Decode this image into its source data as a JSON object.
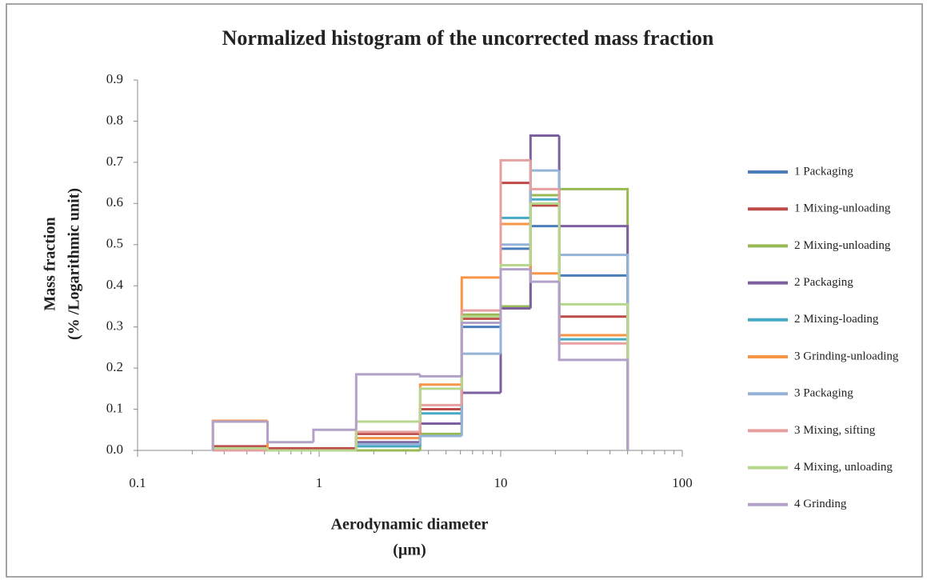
{
  "chart_data": {
    "type": "histogram",
    "title": "Normalized histogram of the uncorrected mass fraction",
    "xlabel": [
      "Aerodynamic diameter",
      "(µm)"
    ],
    "ylabel": [
      "Mass fraction",
      "(% /Logarithmic unit)"
    ],
    "xscale": "log",
    "xlim": [
      0.1,
      100
    ],
    "xticks": [
      0.1,
      1,
      10,
      100
    ],
    "ylim": [
      0,
      0.9
    ],
    "yticks": [
      {
        "value": 0,
        "label": "0.0"
      },
      0.1,
      0.2,
      0.3,
      0.4,
      0.5,
      0.6,
      0.7,
      0.8,
      0.9
    ],
    "legend": "right",
    "bins": [
      0.26,
      0.52,
      0.93,
      1.6,
      3.6,
      6.1,
      10,
      14.6,
      21,
      50
    ],
    "series": [
      {
        "name": "1 Packaging",
        "color": "#4a7ebb",
        "values": [
          0,
          0,
          0,
          0.03,
          0.1,
          0.3,
          0.49,
          0.545,
          0.425
        ]
      },
      {
        "name": "1 Mixing-unloading",
        "color": "#be4b48",
        "values": [
          0.01,
          0.005,
          0.005,
          0.04,
          0.1,
          0.32,
          0.65,
          0.595,
          0.325
        ]
      },
      {
        "name": "2 Mixing-unloading",
        "color": "#98b954",
        "values": [
          0,
          0,
          0,
          0,
          0.04,
          0.33,
          0.35,
          0.62,
          0.635
        ]
      },
      {
        "name": "2 Packaging",
        "color": "#7d60a0",
        "values": [
          0,
          0,
          0,
          0.02,
          0.065,
          0.14,
          0.345,
          0.765,
          0.545
        ]
      },
      {
        "name": "2 Mixing-loading",
        "color": "#46aac5",
        "values": [
          0,
          0,
          0,
          0.01,
          0.09,
          0.31,
          0.565,
          0.61,
          0.27
        ]
      },
      {
        "name": "3 Grinding-unloading",
        "color": "#f79646",
        "values": [
          0.072,
          0,
          0,
          0.03,
          0.16,
          0.42,
          0.55,
          0.43,
          0.28
        ]
      },
      {
        "name": "3 Packaging",
        "color": "#95b3d7",
        "values": [
          0,
          0,
          0,
          0.015,
          0.035,
          0.235,
          0.5,
          0.68,
          0.475
        ]
      },
      {
        "name": "3 Mixing, sifting",
        "color": "#e6a0a0",
        "values": [
          0,
          0,
          0,
          0.045,
          0.11,
          0.34,
          0.705,
          0.635,
          0.26
        ]
      },
      {
        "name": "4 Mixing, unloading",
        "color": "#b7d78f",
        "values": [
          0.005,
          0,
          0,
          0.07,
          0.15,
          0.325,
          0.45,
          0.6,
          0.355
        ]
      },
      {
        "name": "4 Grinding",
        "color": "#b3a2c7",
        "values": [
          0.07,
          0.02,
          0.05,
          0.185,
          0.18,
          0.31,
          0.44,
          0.41,
          0.22
        ]
      }
    ]
  }
}
